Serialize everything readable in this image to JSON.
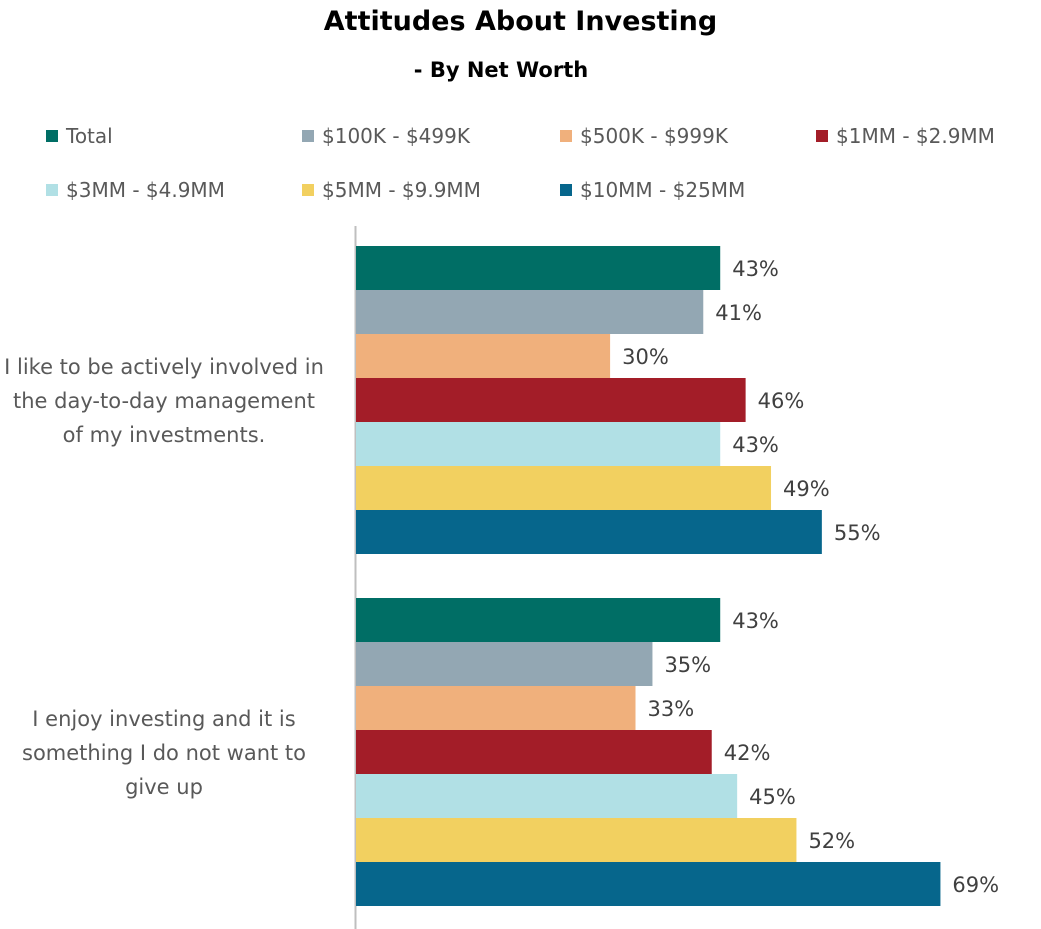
{
  "chart_data": {
    "type": "bar",
    "orientation": "horizontal",
    "title": "Attitudes About Investing",
    "subtitle": "- By Net Worth",
    "categories": [
      "I like to be actively involved in the day-to-day management of my investments.",
      "I enjoy investing and it is something I do not want to give up"
    ],
    "category_lines": [
      [
        "I like to be actively involved in",
        "the day-to-day management",
        "of my investments."
      ],
      [
        "I enjoy investing and it is",
        "something I do not want to",
        "give up"
      ]
    ],
    "series": [
      {
        "name": "Total",
        "color": "#006E65",
        "values": [
          43,
          43
        ],
        "labels": [
          "43%",
          "43%"
        ]
      },
      {
        "name": "$100K - $499K",
        "color": "#93A7B3",
        "values": [
          41,
          35
        ],
        "labels": [
          "41%",
          "35%"
        ]
      },
      {
        "name": "$500K - $999K",
        "color": "#F0B07C",
        "values": [
          30,
          33
        ],
        "labels": [
          "30%",
          "33%"
        ]
      },
      {
        "name": "$1MM - $2.9MM",
        "color": "#A31D28",
        "values": [
          46,
          42
        ],
        "labels": [
          "46%",
          "42%"
        ]
      },
      {
        "name": "$3MM - $4.9MM",
        "color": "#B1E0E5",
        "values": [
          43,
          45
        ],
        "labels": [
          "43%",
          "45%"
        ]
      },
      {
        "name": "$5MM - $9.9MM",
        "color": "#F2D060",
        "values": [
          49,
          52
        ],
        "labels": [
          "49%",
          "52%"
        ]
      },
      {
        "name": "$10MM - $25MM",
        "color": "#06668C",
        "values": [
          55,
          69
        ],
        "labels": [
          "55%",
          "69%"
        ]
      }
    ],
    "legend_position": "top",
    "grid": false,
    "value_axis_visible": false
  }
}
